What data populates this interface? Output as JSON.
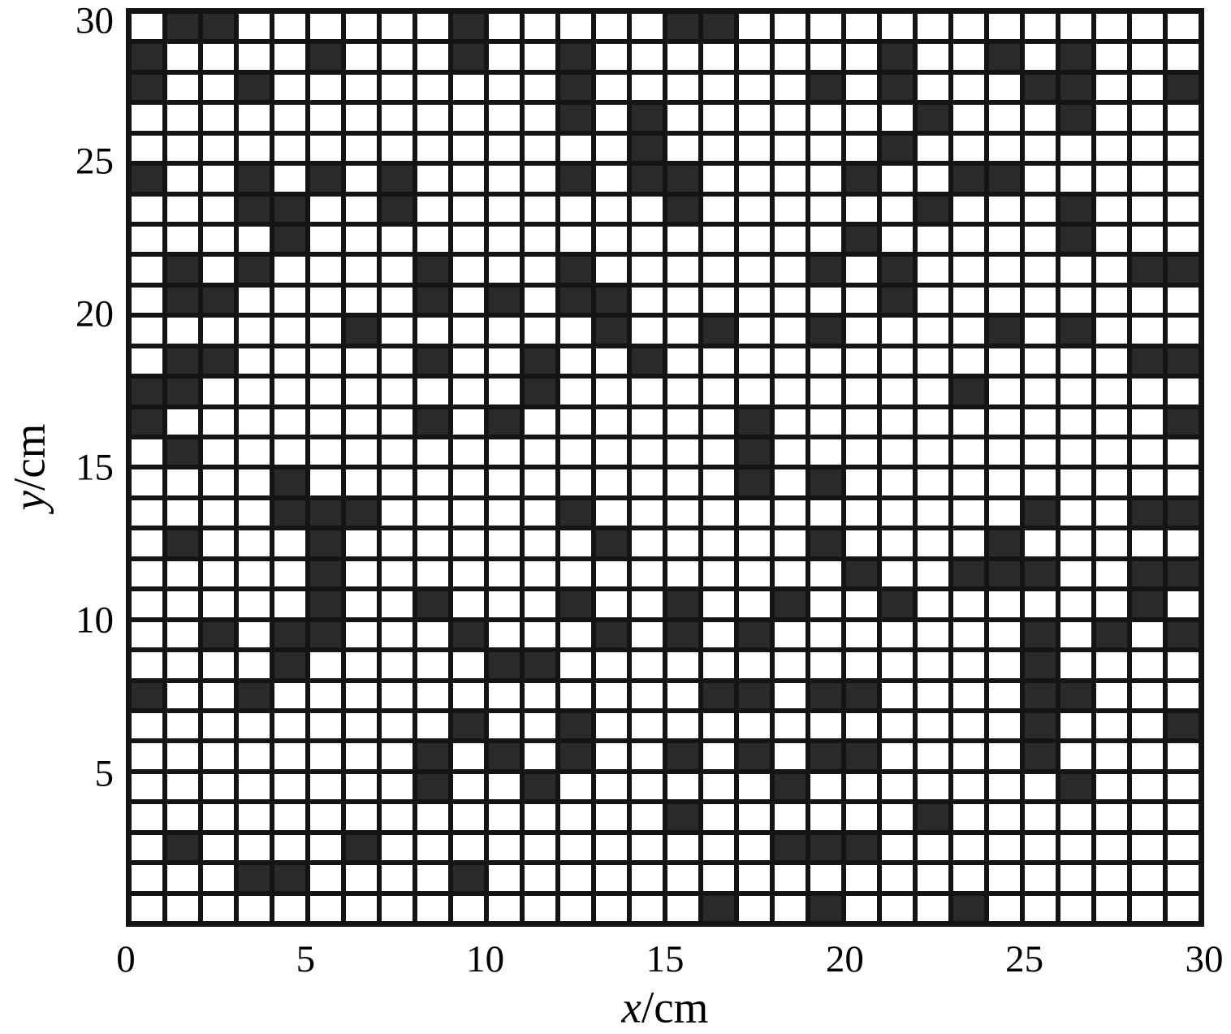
{
  "figure": {
    "x_axis": {
      "label_variable": "x",
      "label_unit": "/cm"
    },
    "y_axis": {
      "label_variable": "y",
      "label_unit": "/cm"
    }
  },
  "chart_data": {
    "type": "heatmap",
    "title": "",
    "xlabel": "x/cm",
    "ylabel": "y/cm",
    "xlim": [
      0,
      30
    ],
    "ylim": [
      0,
      30
    ],
    "x_ticks": [
      0,
      5,
      10,
      15,
      20,
      25,
      30
    ],
    "y_ticks": [
      5,
      10,
      15,
      20,
      25,
      30
    ],
    "grid": {
      "cols": 30,
      "rows": 30,
      "gridlines": "on"
    },
    "legend_position": "none",
    "encoding": "binary occupancy grid; 1 = black filled cell, 0 = white cell; rows listed top (y=30) to bottom (y=0), characters left (x=0) to right (x=30)",
    "rows_top_to_bottom": [
      "011000000100000110000000000000",
      "100001000100100000000100101000",
      "100100000000100000010100011001",
      "000000000000101000000010001000",
      "000000000000001000000100000000",
      "100101010000101100001001100000",
      "000110010000000100000010001000",
      "000010000000000000001000001000",
      "010100001000100000010100000011",
      "011000001010110000000100000000",
      "000000100000010010010000101000",
      "011000001001001000000000000011",
      "110000000001000000000001000000",
      "100000001010000001000000000001",
      "010000000000000001000000000000",
      "000010000000000001010000000000",
      "000011100000100000000000010011",
      "010001000000010000010000100000",
      "000001000000000000001001110011",
      "000001001000100100100100000010",
      "001011000100010101000000010101",
      "000010000011000000000000010000",
      "100100000000000011011000011000",
      "000000000100100000000000010001",
      "000000001010100101011000010000",
      "000000001001000000100000001000",
      "000000000000000100000010000000",
      "010000100000000000111000000000",
      "000110000100000000000000000000",
      "000000000000000010010001000000"
    ],
    "colors": {
      "filled": "#2a2a2a",
      "empty": "#ffffff",
      "gridline": "#141414"
    }
  }
}
